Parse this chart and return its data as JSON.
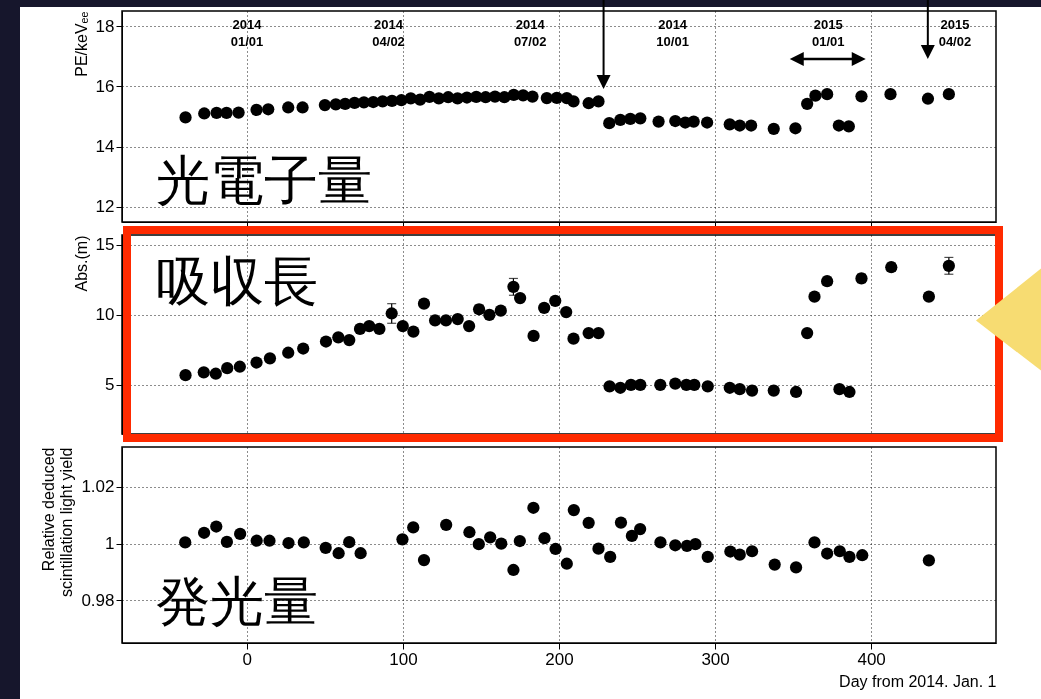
{
  "chart_data": [
    {
      "type": "scatter",
      "ylabel": "PE/keVₑₑ",
      "xlim": [
        -80,
        480
      ],
      "xticks": [
        0,
        100,
        200,
        300,
        400
      ],
      "ylim": [
        11.5,
        18.5
      ],
      "yticks": [
        12,
        14,
        16,
        18
      ],
      "grid": true,
      "marker": "circle",
      "tick_labels": "y",
      "color": "#000000",
      "x": [
        -39.3,
        -27.3,
        -19.4,
        -13,
        -5.3,
        6.2,
        13.7,
        26.5,
        35.7,
        50,
        57,
        63,
        69,
        75,
        81,
        87,
        93,
        99,
        105,
        111,
        117,
        123,
        129,
        135,
        141,
        147,
        153,
        159,
        165,
        171,
        177,
        183,
        192.2,
        198.6,
        205,
        209.3,
        219,
        225.3,
        232.2,
        239.3,
        245.7,
        252.1,
        263.8,
        274.5,
        280.9,
        286.3,
        294.9,
        309.4,
        315.8,
        323.1,
        337.6,
        351.5,
        359,
        364.3,
        371.8,
        379.3,
        385.7,
        393.8,
        412.4,
        436.4,
        449.8
      ],
      "values": [
        14.97,
        15.1,
        15.12,
        15.12,
        15.13,
        15.22,
        15.24,
        15.3,
        15.3,
        15.38,
        15.4,
        15.42,
        15.45,
        15.47,
        15.48,
        15.5,
        15.52,
        15.54,
        15.6,
        15.56,
        15.65,
        15.6,
        15.64,
        15.6,
        15.63,
        15.65,
        15.64,
        15.66,
        15.64,
        15.72,
        15.7,
        15.66,
        15.61,
        15.62,
        15.61,
        15.5,
        15.44,
        15.5,
        14.78,
        14.89,
        14.92,
        14.94,
        14.83,
        14.85,
        14.8,
        14.83,
        14.8,
        14.74,
        14.7,
        14.7,
        14.59,
        14.61,
        15.42,
        15.69,
        15.74,
        14.7,
        14.67,
        15.67,
        15.74,
        15.59,
        15.74
      ],
      "annotations": [
        "光電子量",
        "2014\n01/01",
        "2014\n04/02",
        "2014\n07/02",
        "2014\n10/01",
        "2015\n01/01",
        "2015\n04/02"
      ]
    },
    {
      "type": "scatter",
      "ylabel": "Abs.(m)",
      "xlim": [
        -80,
        480
      ],
      "xticks": [
        0,
        100,
        200,
        300,
        400
      ],
      "ylim": [
        1.5,
        15.7
      ],
      "yticks": [
        5,
        10,
        15
      ],
      "grid": true,
      "marker": "circle",
      "tick_labels": "y",
      "color": "#000000",
      "x": [
        -39.3,
        -27.6,
        -19.9,
        -12.6,
        -4.5,
        6.2,
        14.8,
        26.5,
        36.1,
        50.7,
        58.6,
        65.6,
        72.5,
        78.4,
        84.9,
        92.8,
        99.9,
        106.7,
        113.5,
        120.6,
        127.6,
        135.1,
        142.4,
        148.8,
        155.4,
        162.7,
        170.8,
        175.1,
        183.7,
        190.5,
        197.6,
        204.6,
        209.3,
        219,
        225.3,
        232.4,
        239.3,
        246.1,
        252.1,
        264.9,
        274.5,
        281.6,
        286.7,
        295.3,
        309.4,
        315.8,
        323.7,
        337.6,
        351.9,
        359,
        363.7,
        371.8,
        379.7,
        386.1,
        393.8,
        412.9,
        437,
        449.8
      ],
      "values": [
        5.7,
        5.9,
        5.8,
        6.2,
        6.3,
        6.6,
        6.9,
        7.3,
        7.6,
        8.1,
        8.4,
        8.2,
        9.0,
        9.2,
        9.0,
        10.1,
        9.2,
        8.8,
        10.8,
        9.6,
        9.6,
        9.7,
        9.2,
        10.4,
        10.0,
        10.3,
        12.0,
        11.2,
        8.5,
        10.5,
        11.0,
        10.2,
        8.3,
        8.7,
        8.7,
        4.9,
        4.8,
        5.0,
        5.0,
        5.0,
        5.1,
        5.0,
        5.0,
        4.9,
        4.8,
        4.7,
        4.6,
        4.6,
        4.5,
        8.7,
        11.3,
        12.4,
        4.7,
        4.5,
        12.6,
        13.4,
        11.3,
        13.5
      ],
      "errors": [
        null,
        null,
        null,
        null,
        null,
        null,
        null,
        null,
        null,
        null,
        null,
        null,
        null,
        null,
        null,
        0.7,
        null,
        null,
        null,
        null,
        null,
        null,
        null,
        0.3,
        null,
        null,
        0.6,
        null,
        null,
        null,
        null,
        null,
        null,
        null,
        null,
        null,
        null,
        null,
        null,
        null,
        null,
        null,
        null,
        null,
        null,
        null,
        null,
        null,
        null,
        null,
        null,
        0.3,
        null,
        null,
        0.3,
        0.3,
        null,
        0.6
      ],
      "annotations": [
        "吸収長"
      ]
    },
    {
      "type": "scatter",
      "ylabel": "Relative deduced\nscintillation light yield",
      "xlabel": "Day from 2014. Jan. 1",
      "xlim": [
        -80,
        480
      ],
      "xticks": [
        0,
        100,
        200,
        300,
        400
      ],
      "ylim": [
        0.965,
        1.034
      ],
      "yticks": [
        0.98,
        1,
        1.02
      ],
      "grid": true,
      "marker": "circle",
      "color": "#000000",
      "x": [
        -39.5,
        -27.4,
        -19.6,
        -12.8,
        -4.3,
        6.3,
        14.5,
        26.7,
        36.5,
        50.5,
        58.8,
        65.6,
        72.9,
        99.7,
        106.6,
        113.5,
        127.7,
        142.6,
        148.6,
        155.9,
        163,
        170.8,
        174.9,
        183.6,
        190.7,
        197.8,
        205,
        209.5,
        219,
        225.3,
        232.8,
        239.7,
        246.7,
        252,
        265,
        274.5,
        282,
        287.4,
        295.3,
        309.8,
        315.8,
        323.7,
        338.2,
        351.9,
        363.7,
        371.8,
        379.9,
        386.1,
        394.3,
        437
      ],
      "values": [
        1.0004,
        1.0038,
        1.006,
        1.0006,
        1.0034,
        1.001,
        1.001,
        1.0002,
        1.0004,
        0.9985,
        0.9966,
        1.0005,
        0.9966,
        1.0015,
        1.0057,
        0.9942,
        1.0066,
        1.004,
        0.9998,
        1.0022,
        1.0,
        0.9907,
        1.0009,
        1.0126,
        1.0019,
        0.9981,
        0.9929,
        1.0118,
        1.0073,
        0.9982,
        0.9953,
        1.0074,
        1.0027,
        1.0051,
        1.0004,
        0.9994,
        0.9992,
        0.9998,
        0.9953,
        0.9972,
        0.9961,
        0.9973,
        0.9926,
        0.9916,
        1.0004,
        0.9965,
        0.9973,
        0.9953,
        0.9959,
        0.9941
      ],
      "annotations": [
        "発光量"
      ]
    }
  ]
}
